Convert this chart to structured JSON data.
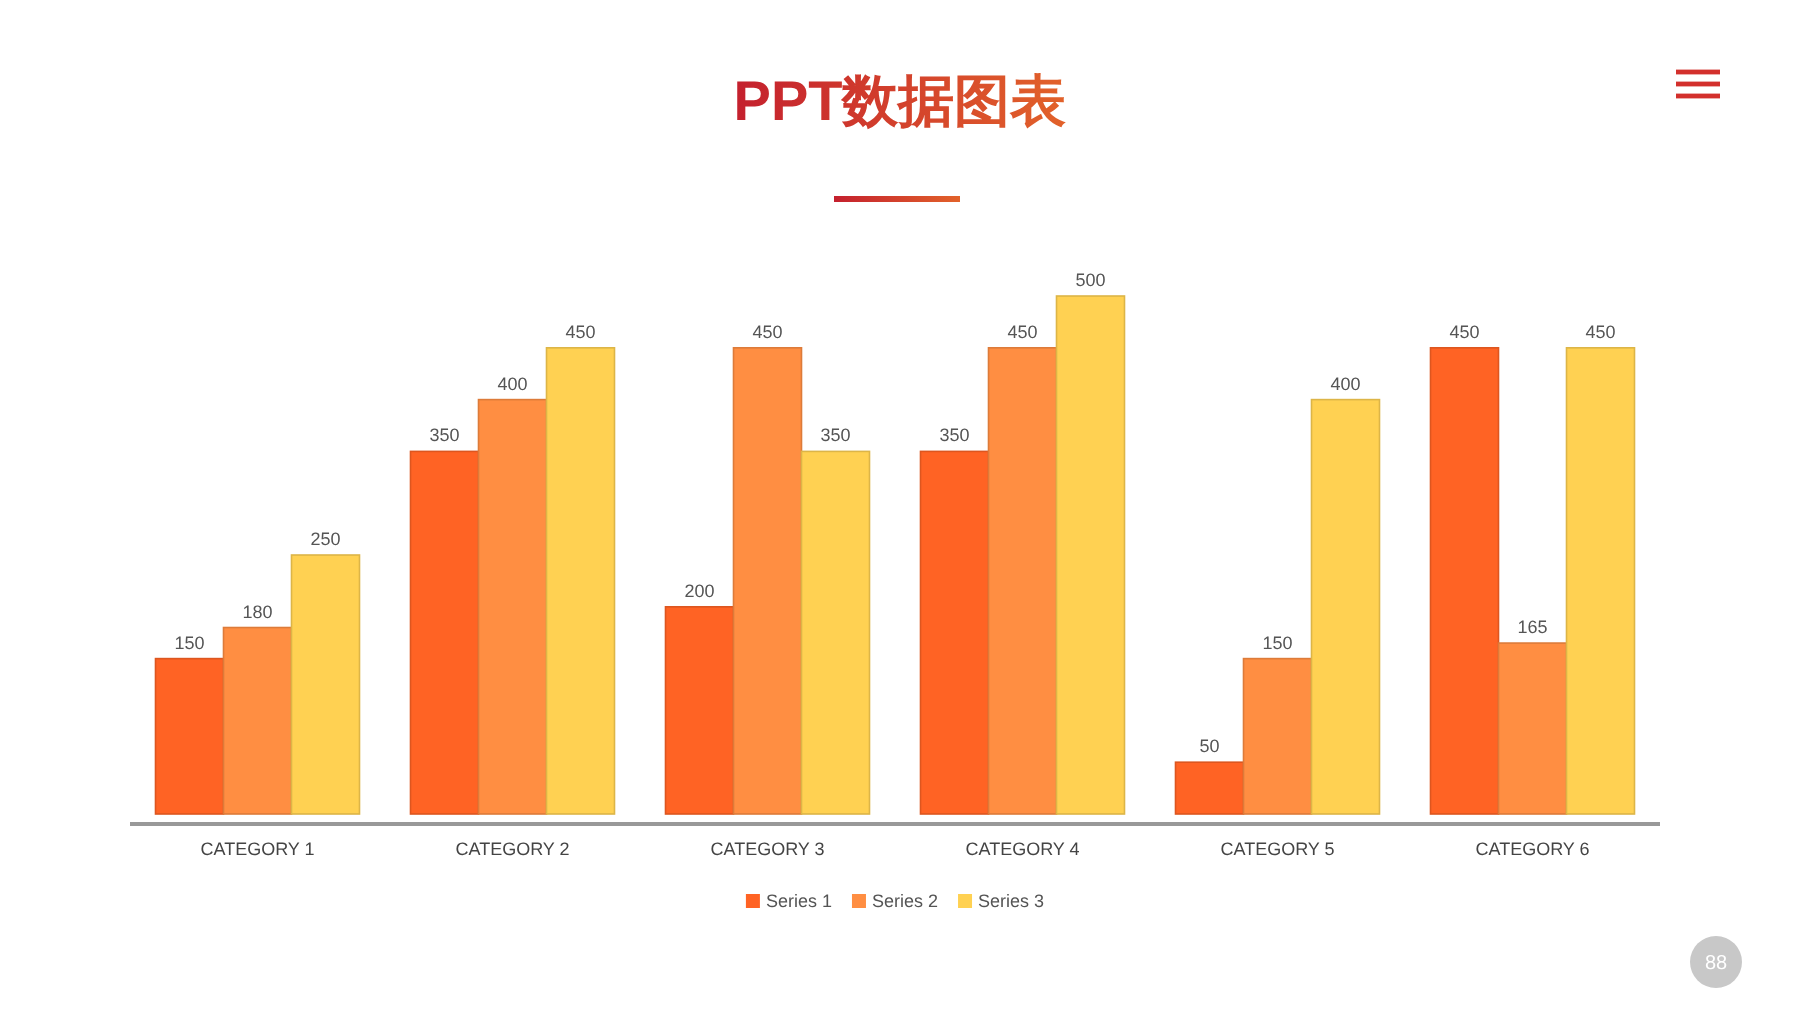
{
  "chart_data": {
    "type": "bar",
    "title": "PPT数据图表",
    "categories": [
      "CATEGORY 1",
      "CATEGORY 2",
      "CATEGORY 3",
      "CATEGORY 4",
      "CATEGORY 5",
      "CATEGORY 6"
    ],
    "series": [
      {
        "name": "Series 1",
        "color": "#ff6324",
        "values": [
          150,
          350,
          200,
          350,
          50,
          450
        ]
      },
      {
        "name": "Series 2",
        "color": "#ff8e42",
        "values": [
          180,
          400,
          450,
          450,
          150,
          165
        ]
      },
      {
        "name": "Series 3",
        "color": "#ffd152",
        "values": [
          250,
          450,
          350,
          500,
          400,
          450
        ]
      }
    ],
    "ylim": [
      0,
      500
    ],
    "tick_labels": "x",
    "data_labels": true,
    "legend": "bottom",
    "annotations": [
      "88"
    ]
  }
}
